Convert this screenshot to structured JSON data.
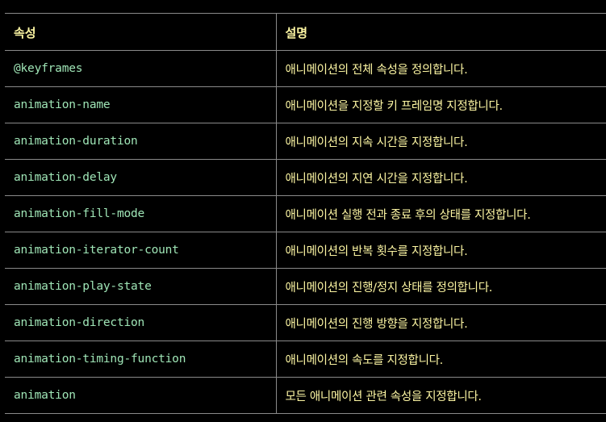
{
  "table": {
    "headers": [
      "속성",
      "설명"
    ],
    "rows": [
      {
        "property": "@keyframes",
        "description": "애니메이션의 전체 속성을 정의합니다."
      },
      {
        "property": "animation-name",
        "description": "애니메이션을 지정할 키 프레임명 지정합니다."
      },
      {
        "property": "animation-duration",
        "description": "애니메이션의 지속 시간을 지정합니다."
      },
      {
        "property": "animation-delay",
        "description": "애니메이션의 지연 시간을 지정합니다."
      },
      {
        "property": "animation-fill-mode",
        "description": "애니메이션 실행 전과 종료 후의 상태를 지정합니다."
      },
      {
        "property": "animation-iterator-count",
        "description": "애니메이션의 반복 횟수를 지정합니다."
      },
      {
        "property": "animation-play-state",
        "description": "애니메이션의 진행/정지 상태를 정의합니다."
      },
      {
        "property": "animation-direction",
        "description": "애니메이션의 진행 방향을 지정합니다."
      },
      {
        "property": "animation-timing-function",
        "description": "애니메이션의 속도를 지정합니다."
      },
      {
        "property": "animation",
        "description": "모든 애니메이션 관련 속성을 지정합니다."
      }
    ]
  },
  "colors": {
    "background": "#000000",
    "header_text": "#fdf6a3",
    "property_text": "#9fe5b6",
    "description_text": "#fdf6a3",
    "border": "#8a8a8a"
  }
}
